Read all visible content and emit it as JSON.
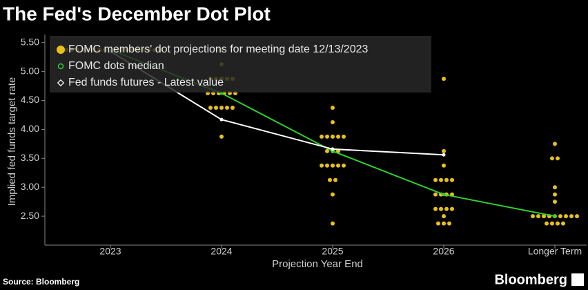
{
  "chart_data": {
    "type": "dot",
    "title": "The Fed's December Dot Plot",
    "x_label": "Projection Year End",
    "y_label": "Implied fed funds target rate",
    "source": "Source: Bloomberg",
    "brand": "Bloomberg",
    "categories": [
      "2023",
      "2024",
      "2025",
      "2026",
      "Longer Term"
    ],
    "ylim": [
      2,
      5.64
    ],
    "yticks": [
      {
        "value": 2.5,
        "label": "2.50"
      },
      {
        "value": 3,
        "label": "3.00"
      },
      {
        "value": 3.5,
        "label": "3.50"
      },
      {
        "value": 4,
        "label": "4.00"
      },
      {
        "value": 4.5,
        "label": "4.50"
      },
      {
        "value": 5,
        "label": "5.00"
      },
      {
        "value": 5.5,
        "label": "5.50"
      }
    ],
    "legend": "upper left",
    "series": [
      {
        "name": "FOMC members' dot projections for meeting date 12/13/2023",
        "color": "#e6c01c",
        "kind": "dots",
        "values": [
          [
            5.375,
            5.375,
            5.375,
            5.375,
            5.375,
            5.375,
            5.375,
            5.375,
            5.375,
            5.375,
            5.375,
            5.375,
            5.375,
            5.375,
            5.375,
            5.375,
            5.375,
            5.375,
            5.375
          ],
          [
            3.875,
            4.375,
            4.375,
            4.375,
            4.375,
            4.375,
            4.625,
            4.625,
            4.625,
            4.625,
            4.625,
            4.625,
            4.875,
            4.875,
            4.875,
            4.875,
            4.875,
            5.125,
            5.375
          ],
          [
            2.375,
            2.875,
            3.125,
            3.125,
            3.375,
            3.375,
            3.375,
            3.375,
            3.375,
            3.625,
            3.625,
            3.625,
            3.875,
            3.875,
            3.875,
            3.875,
            3.875,
            4.125,
            4.375
          ],
          [
            2.375,
            2.375,
            2.375,
            2.5,
            2.625,
            2.625,
            2.625,
            2.625,
            2.875,
            2.875,
            2.875,
            2.875,
            3.125,
            3.125,
            3.125,
            3.125,
            3.375,
            3.625,
            4.875
          ],
          [
            2.375,
            2.375,
            2.375,
            2.375,
            2.5,
            2.5,
            2.5,
            2.5,
            2.5,
            2.5,
            2.5,
            2.5,
            2.5,
            2.75,
            2.875,
            3,
            3.5,
            3.5,
            3.75
          ]
        ]
      },
      {
        "name": "FOMC dots median",
        "color": "#2fd12f",
        "kind": "line",
        "values": [
          5.375,
          4.625,
          3.625,
          2.875,
          2.5
        ]
      },
      {
        "name": "Fed funds futures - Latest value",
        "color": "#ffffff",
        "kind": "line",
        "values": [
          5.35,
          4.17,
          3.66,
          3.56,
          null
        ]
      }
    ]
  }
}
